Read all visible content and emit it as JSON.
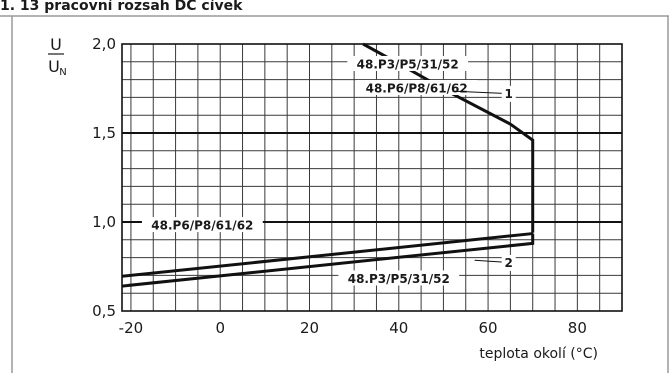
{
  "header": "1. 13 pracovní rozsah DC cívek",
  "chart_data": {
    "type": "line",
    "xlabel": "teplota okolí  (°C)",
    "ylabel_num": "U",
    "ylabel_den": "U",
    "ylabel_den_sub": "N",
    "xlim": [
      -22,
      90
    ],
    "ylim": [
      0.5,
      2.0
    ],
    "x_ticks": [
      -20,
      0,
      20,
      40,
      60,
      80
    ],
    "x_tick_labels": [
      "-20",
      "0",
      "20",
      "40",
      "60",
      "80"
    ],
    "y_ticks": [
      0.5,
      1.0,
      1.5,
      2.0
    ],
    "y_tick_labels": [
      "0,5",
      "1,0",
      "1,5",
      "2,0"
    ],
    "grid": true,
    "curve_labels": [
      {
        "number": "1",
        "x": 70,
        "y": 1.72
      },
      {
        "number": "2",
        "x": 70,
        "y": 0.77
      }
    ],
    "series": [
      {
        "id": "upper_limit",
        "x": [
          32,
          40,
          52,
          65,
          70,
          70
        ],
        "y": [
          2.0,
          1.89,
          1.72,
          1.55,
          1.46,
          0.94
        ]
      },
      {
        "id": "lower_P6",
        "x": [
          -22,
          70
        ],
        "y": [
          0.695,
          0.935
        ]
      },
      {
        "id": "lower_P3",
        "x": [
          -22,
          70,
          70
        ],
        "y": [
          0.64,
          0.88,
          0.935
        ]
      }
    ],
    "annotations": [
      {
        "text": "48.P3/P5/31/52",
        "x": 42,
        "y": 1.885
      },
      {
        "text": "48.P6/P8/61/62",
        "x": 44,
        "y": 1.75
      },
      {
        "text": "48.P6/P8/61/62",
        "x": -4,
        "y": 0.98
      },
      {
        "text": "48.P3/P5/31/52",
        "x": 40,
        "y": 0.68
      }
    ]
  }
}
